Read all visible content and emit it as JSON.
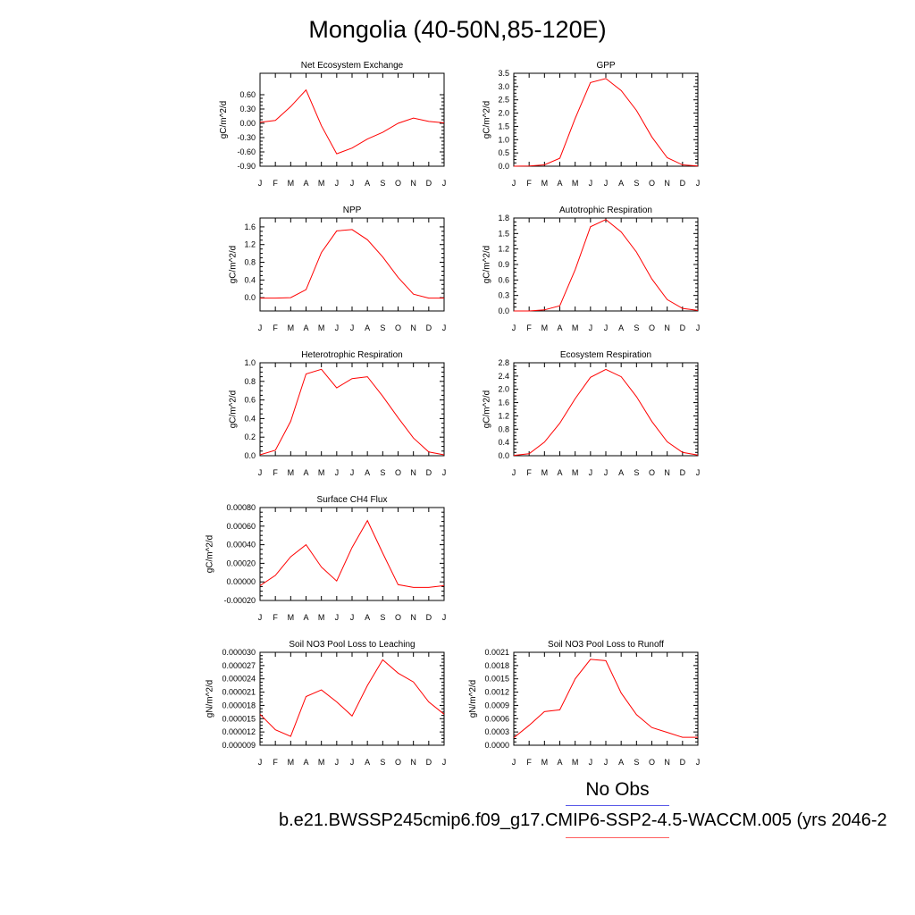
{
  "title": "Mongolia (40-50N,85-120E)",
  "legend": {
    "obs_label": "No Obs",
    "obs_color": "#5a5ae8",
    "run_label": "b.e21.BWSSP245cmip6.f09_g17.CMIP6-SSP2-4.5-WACCM.005 (yrs 2046-2",
    "run_color": "#ff0000"
  },
  "chart_data": [
    {
      "type": "line",
      "title": "Net Ecosystem Exchange",
      "ylabel": "gC/m^2/d",
      "xticks": [
        "J",
        "F",
        "M",
        "A",
        "M",
        "J",
        "J",
        "A",
        "S",
        "O",
        "N",
        "D",
        "J"
      ],
      "ylim": [
        -0.9,
        1.05
      ],
      "yticks": [
        "-0.90",
        "-0.60",
        "-0.30",
        "0.00",
        "0.30",
        "0.60"
      ],
      "yticks_v": [
        -0.9,
        -0.6,
        -0.3,
        0.0,
        0.3,
        0.6
      ],
      "series": [
        {
          "color": "#ff0000",
          "values": [
            0.02,
            0.06,
            0.35,
            0.7,
            -0.05,
            -0.64,
            -0.52,
            -0.33,
            -0.19,
            0.0,
            0.11,
            0.04,
            0.01
          ]
        }
      ]
    },
    {
      "type": "line",
      "title": "GPP",
      "ylabel": "gC/m^2/d",
      "xticks": [
        "J",
        "F",
        "M",
        "A",
        "M",
        "J",
        "J",
        "A",
        "S",
        "O",
        "N",
        "D",
        "J"
      ],
      "ylim": [
        0,
        3.5
      ],
      "yticks": [
        "0.0",
        "0.5",
        "1.0",
        "1.5",
        "2.0",
        "2.5",
        "3.0",
        "3.5"
      ],
      "yticks_v": [
        0,
        0.5,
        1.0,
        1.5,
        2.0,
        2.5,
        3.0,
        3.5
      ],
      "series": [
        {
          "color": "#ff0000",
          "values": [
            0.0,
            0.01,
            0.05,
            0.3,
            1.8,
            3.15,
            3.3,
            2.85,
            2.1,
            1.1,
            0.32,
            0.05,
            0.01
          ]
        }
      ]
    },
    {
      "type": "line",
      "title": "NPP",
      "ylabel": "gC/m^2/d",
      "xticks": [
        "J",
        "F",
        "M",
        "A",
        "M",
        "J",
        "J",
        "A",
        "S",
        "O",
        "N",
        "D",
        "J"
      ],
      "ylim": [
        -0.3,
        1.8
      ],
      "yticks": [
        "0.0",
        "0.4",
        "0.8",
        "1.2",
        "1.6"
      ],
      "yticks_v": [
        0,
        0.4,
        0.8,
        1.2,
        1.6
      ],
      "series": [
        {
          "color": "#ff0000",
          "values": [
            -0.01,
            -0.01,
            0.0,
            0.18,
            1.02,
            1.51,
            1.54,
            1.31,
            0.92,
            0.46,
            0.08,
            -0.01,
            -0.01
          ]
        }
      ]
    },
    {
      "type": "line",
      "title": "Autotrophic Respiration",
      "ylabel": "gC/m^2/d",
      "xticks": [
        "J",
        "F",
        "M",
        "A",
        "M",
        "J",
        "J",
        "A",
        "S",
        "O",
        "N",
        "D",
        "J"
      ],
      "ylim": [
        0,
        1.8
      ],
      "yticks": [
        "0.0",
        "0.3",
        "0.6",
        "0.9",
        "1.2",
        "1.5",
        "1.8"
      ],
      "yticks_v": [
        0,
        0.3,
        0.6,
        0.9,
        1.2,
        1.5,
        1.8
      ],
      "series": [
        {
          "color": "#ff0000",
          "values": [
            0.0,
            0.0,
            0.02,
            0.1,
            0.8,
            1.63,
            1.77,
            1.53,
            1.14,
            0.62,
            0.22,
            0.05,
            0.01
          ]
        }
      ]
    },
    {
      "type": "line",
      "title": "Heterotrophic Respiration",
      "ylabel": "gC/m^2/d",
      "xticks": [
        "J",
        "F",
        "M",
        "A",
        "M",
        "J",
        "J",
        "A",
        "S",
        "O",
        "N",
        "D",
        "J"
      ],
      "ylim": [
        0,
        1.0
      ],
      "yticks": [
        "0.0",
        "0.2",
        "0.4",
        "0.6",
        "0.8",
        "1.0"
      ],
      "yticks_v": [
        0,
        0.2,
        0.4,
        0.6,
        0.8,
        1.0
      ],
      "series": [
        {
          "color": "#ff0000",
          "values": [
            0.01,
            0.06,
            0.37,
            0.88,
            0.93,
            0.73,
            0.83,
            0.85,
            0.64,
            0.41,
            0.19,
            0.04,
            0.01
          ]
        }
      ]
    },
    {
      "type": "line",
      "title": "Ecosystem Respiration",
      "ylabel": "gC/m^2/d",
      "xticks": [
        "J",
        "F",
        "M",
        "A",
        "M",
        "J",
        "J",
        "A",
        "S",
        "O",
        "N",
        "D",
        "J"
      ],
      "ylim": [
        0,
        2.8
      ],
      "yticks": [
        "0.0",
        "0.4",
        "0.8",
        "1.2",
        "1.6",
        "2.0",
        "2.4",
        "2.8"
      ],
      "yticks_v": [
        0,
        0.4,
        0.8,
        1.2,
        1.6,
        2.0,
        2.4,
        2.8
      ],
      "series": [
        {
          "color": "#ff0000",
          "values": [
            0.01,
            0.06,
            0.41,
            0.98,
            1.72,
            2.36,
            2.6,
            2.38,
            1.78,
            1.03,
            0.42,
            0.1,
            0.02
          ]
        }
      ]
    },
    {
      "type": "line",
      "title": "Surface CH4 Flux",
      "ylabel": "gC/m^2/d",
      "xticks": [
        "J",
        "F",
        "M",
        "A",
        "M",
        "J",
        "J",
        "A",
        "S",
        "O",
        "N",
        "D",
        "J"
      ],
      "ylim": [
        -0.0002,
        0.0008
      ],
      "yticks": [
        "-0.00020",
        "0.00000",
        "0.00020",
        "0.00040",
        "0.00060",
        "0.00080"
      ],
      "yticks_v": [
        -0.0002,
        0,
        0.0002,
        0.0004,
        0.0006,
        0.0008
      ],
      "series": [
        {
          "color": "#ff0000",
          "values": [
            -4e-05,
            7e-05,
            0.00027,
            0.0004,
            0.00016,
            1e-05,
            0.00037,
            0.00066,
            0.00031,
            -3e-05,
            -6e-05,
            -6e-05,
            -4e-05
          ]
        }
      ]
    },
    {
      "type": "line",
      "title": "Soil NO3 Pool Loss to Leaching",
      "ylabel": "gN/m^2/d",
      "xticks": [
        "J",
        "F",
        "M",
        "A",
        "M",
        "J",
        "J",
        "A",
        "S",
        "O",
        "N",
        "D",
        "J"
      ],
      "ylim": [
        9e-06,
        3e-05
      ],
      "yticks": [
        "0.000009",
        "0.000012",
        "0.000015",
        "0.000018",
        "0.000021",
        "0.000024",
        "0.000027",
        "0.000030"
      ],
      "yticks_v": [
        9e-06,
        1.2e-05,
        1.5e-05,
        1.8e-05,
        2.1e-05,
        2.4e-05,
        2.7e-05,
        3e-05
      ],
      "series": [
        {
          "color": "#ff0000",
          "values": [
            1.6e-05,
            1.25e-05,
            1.1e-05,
            2e-05,
            2.15e-05,
            1.88e-05,
            1.56e-05,
            2.25e-05,
            2.83e-05,
            2.53e-05,
            2.33e-05,
            1.88e-05,
            1.6e-05
          ]
        }
      ]
    },
    {
      "type": "line",
      "title": "Soil NO3 Pool Loss to Runoff",
      "ylabel": "gN/m^2/d",
      "xticks": [
        "J",
        "F",
        "M",
        "A",
        "M",
        "J",
        "J",
        "A",
        "S",
        "O",
        "N",
        "D",
        "J"
      ],
      "ylim": [
        0,
        0.0021
      ],
      "yticks": [
        "0.0000",
        "0.0003",
        "0.0006",
        "0.0009",
        "0.0012",
        "0.0015",
        "0.0018",
        "0.0021"
      ],
      "yticks_v": [
        0,
        0.0003,
        0.0006,
        0.0009,
        0.0012,
        0.0015,
        0.0018,
        0.0021
      ],
      "series": [
        {
          "color": "#ff0000",
          "values": [
            0.00017,
            0.00045,
            0.00076,
            0.0008,
            0.0015,
            0.00194,
            0.00191,
            0.00118,
            0.00069,
            0.0004,
            0.00029,
            0.00018,
            0.00018
          ]
        }
      ]
    }
  ]
}
